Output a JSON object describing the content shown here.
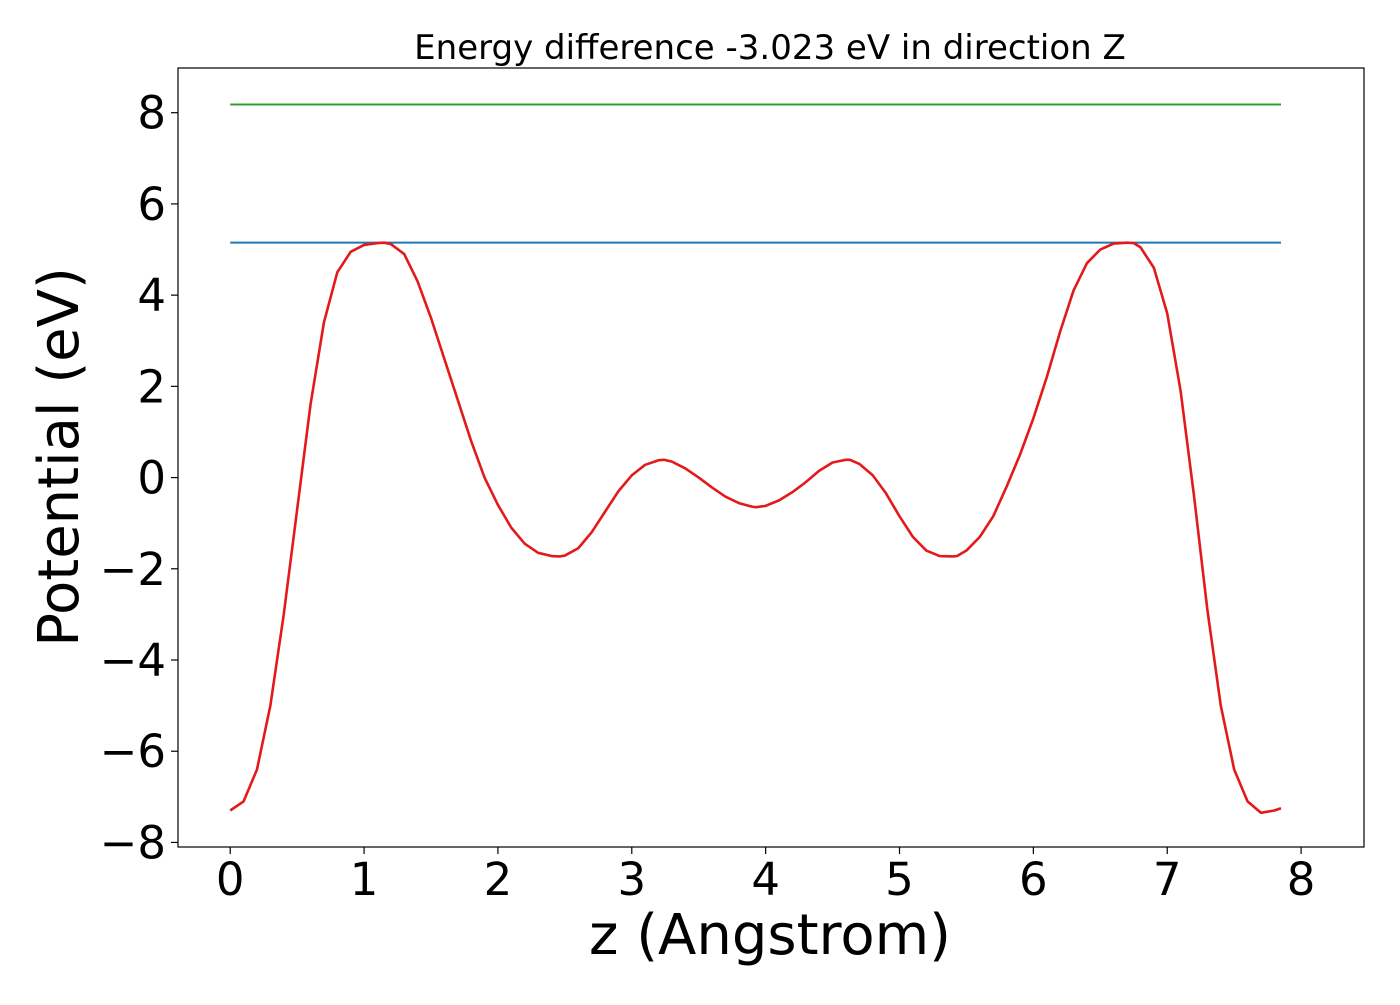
{
  "chart_data": {
    "type": "line",
    "title": "Energy difference -3.023 eV in direction Z",
    "xlabel": "z (Angstrom)",
    "ylabel": "Potential (eV)",
    "xlim": [
      -0.39,
      8.47
    ],
    "ylim": [
      -8.1,
      8.98
    ],
    "xticks": [
      0,
      1,
      2,
      3,
      4,
      5,
      6,
      7,
      8
    ],
    "xtick_labels": [
      "0",
      "1",
      "2",
      "3",
      "4",
      "5",
      "6",
      "7",
      "8"
    ],
    "yticks": [
      -8,
      -6,
      -4,
      -2,
      0,
      2,
      4,
      6,
      8
    ],
    "ytick_labels": [
      "−8",
      "−6",
      "−4",
      "−2",
      "0",
      "2",
      "4",
      "6",
      "8"
    ],
    "grid": false,
    "legend": "none",
    "series": [
      {
        "color": "#2ca02c",
        "x": [
          0,
          7.85
        ],
        "y": [
          8.18,
          8.18
        ]
      },
      {
        "color": "#1f77b4",
        "x": [
          0,
          7.85
        ],
        "y": [
          5.15,
          5.15
        ]
      },
      {
        "color": "#e31a1c",
        "x": [
          0.0,
          0.1,
          0.2,
          0.3,
          0.4,
          0.5,
          0.6,
          0.7,
          0.8,
          0.9,
          1.0,
          1.1,
          1.15,
          1.2,
          1.3,
          1.4,
          1.5,
          1.6,
          1.7,
          1.8,
          1.9,
          2.0,
          2.1,
          2.2,
          2.3,
          2.4,
          2.46,
          2.5,
          2.6,
          2.7,
          2.8,
          2.9,
          3.0,
          3.1,
          3.2,
          3.24,
          3.3,
          3.4,
          3.5,
          3.6,
          3.7,
          3.8,
          3.9,
          3.93,
          4.0,
          4.1,
          4.2,
          4.3,
          4.4,
          4.5,
          4.6,
          4.63,
          4.7,
          4.8,
          4.9,
          5.0,
          5.1,
          5.2,
          5.3,
          5.4,
          5.43,
          5.5,
          5.6,
          5.7,
          5.8,
          5.9,
          6.0,
          6.1,
          6.2,
          6.3,
          6.4,
          6.5,
          6.6,
          6.7,
          6.75,
          6.8,
          6.9,
          7.0,
          7.1,
          7.2,
          7.3,
          7.4,
          7.5,
          7.6,
          7.7,
          7.8,
          7.85
        ],
        "y": [
          -7.3,
          -7.1,
          -6.4,
          -5.0,
          -3.0,
          -0.7,
          1.6,
          3.4,
          4.5,
          4.95,
          5.1,
          5.14,
          5.15,
          5.12,
          4.9,
          4.3,
          3.5,
          2.6,
          1.7,
          0.8,
          0.0,
          -0.6,
          -1.1,
          -1.45,
          -1.65,
          -1.72,
          -1.73,
          -1.71,
          -1.55,
          -1.2,
          -0.75,
          -0.3,
          0.05,
          0.28,
          0.38,
          0.39,
          0.35,
          0.2,
          0.0,
          -0.22,
          -0.42,
          -0.56,
          -0.64,
          -0.65,
          -0.62,
          -0.5,
          -0.32,
          -0.1,
          0.15,
          0.33,
          0.39,
          0.39,
          0.3,
          0.05,
          -0.35,
          -0.85,
          -1.3,
          -1.6,
          -1.72,
          -1.73,
          -1.72,
          -1.6,
          -1.3,
          -0.85,
          -0.2,
          0.5,
          1.3,
          2.2,
          3.2,
          4.1,
          4.7,
          5.0,
          5.13,
          5.15,
          5.14,
          5.05,
          4.6,
          3.6,
          1.9,
          -0.4,
          -2.9,
          -5.0,
          -6.4,
          -7.1,
          -7.35,
          -7.3,
          -7.25
        ]
      }
    ]
  }
}
